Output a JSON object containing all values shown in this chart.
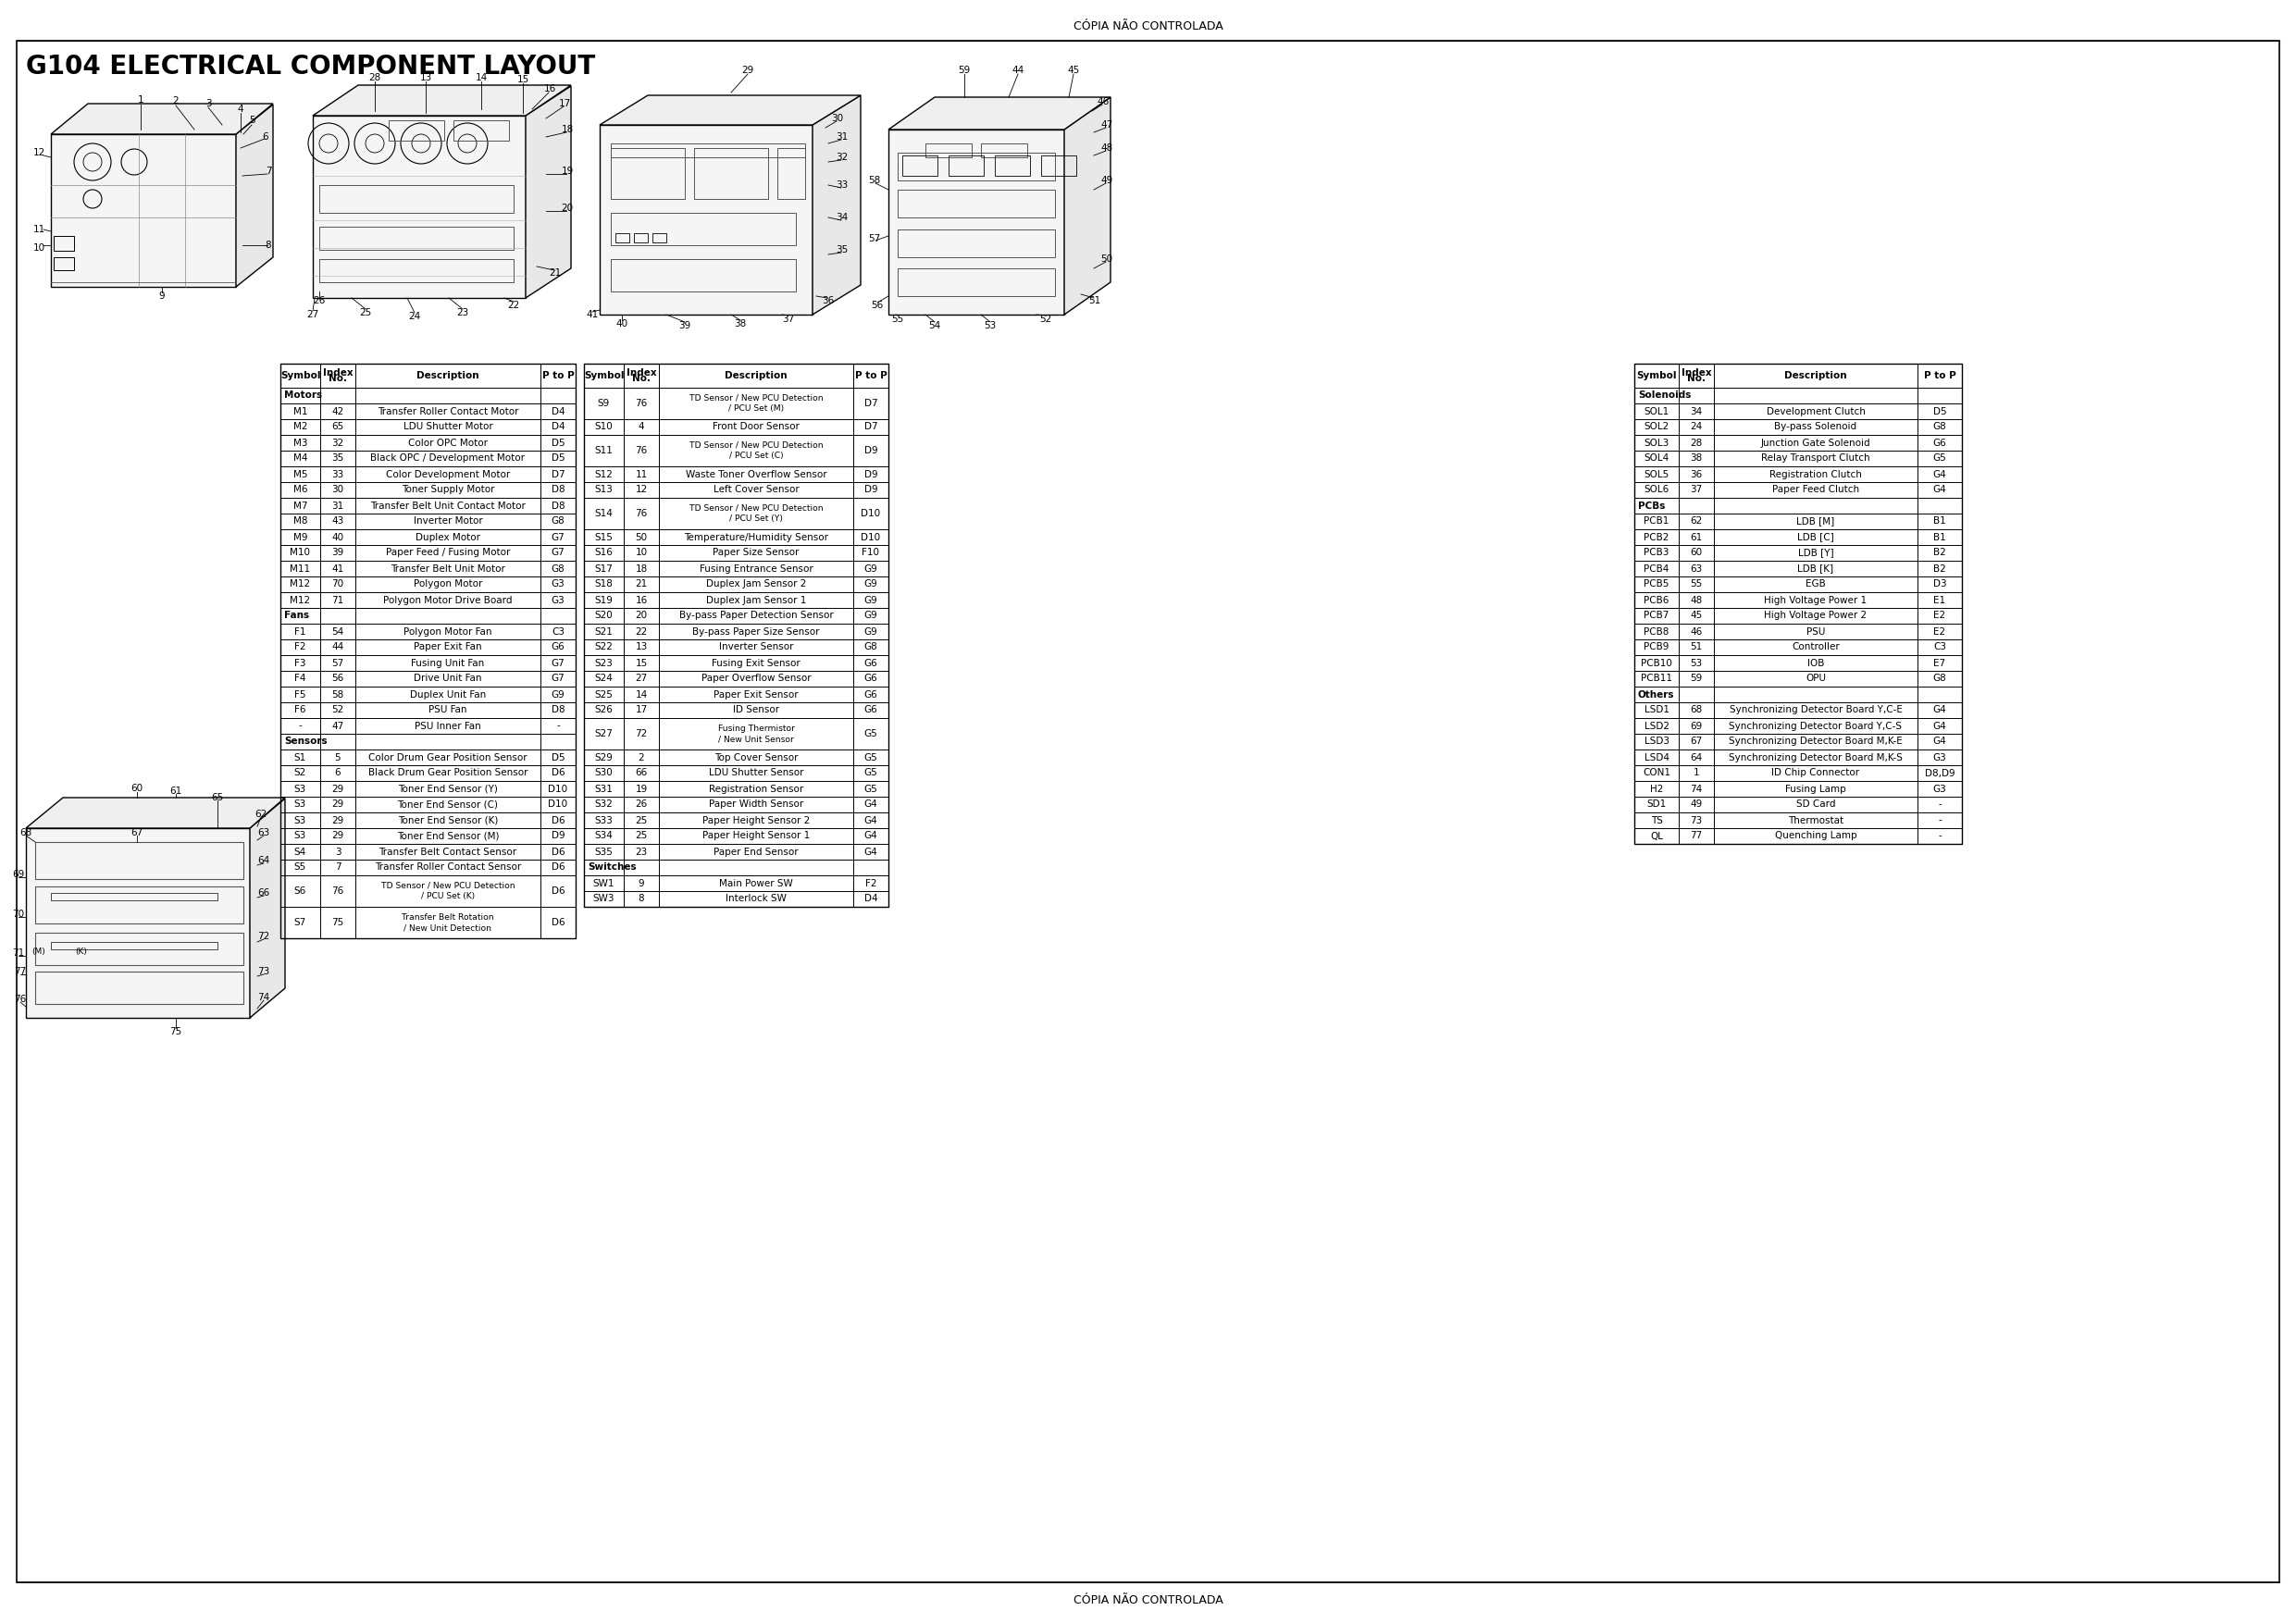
{
  "title": "G104 ELECTRICAL COMPONENT LAYOUT",
  "watermark": "CÓPIA NÃO CONTROLADA",
  "table1": {
    "sections": [
      {
        "name": "Motors",
        "rows": [
          [
            "M1",
            "42",
            "Transfer Roller Contact Motor",
            "D4"
          ],
          [
            "M2",
            "65",
            "LDU Shutter Motor",
            "D4"
          ],
          [
            "M3",
            "32",
            "Color OPC Motor",
            "D5"
          ],
          [
            "M4",
            "35",
            "Black OPC / Development Motor",
            "D5"
          ],
          [
            "M5",
            "33",
            "Color Development Motor",
            "D7"
          ],
          [
            "M6",
            "30",
            "Toner Supply Motor",
            "D8"
          ],
          [
            "M7",
            "31",
            "Transfer Belt Unit Contact Motor",
            "D8"
          ],
          [
            "M8",
            "43",
            "Inverter Motor",
            "G8"
          ],
          [
            "M9",
            "40",
            "Duplex Motor",
            "G7"
          ],
          [
            "M10",
            "39",
            "Paper Feed / Fusing Motor",
            "G7"
          ],
          [
            "M11",
            "41",
            "Transfer Belt Unit Motor",
            "G8"
          ],
          [
            "M12",
            "70",
            "Polygon Motor",
            "G3"
          ],
          [
            "M12",
            "71",
            "Polygon Motor Drive Board",
            "G3"
          ]
        ]
      },
      {
        "name": "Fans",
        "rows": [
          [
            "F1",
            "54",
            "Polygon Motor Fan",
            "C3"
          ],
          [
            "F2",
            "44",
            "Paper Exit Fan",
            "G6"
          ],
          [
            "F3",
            "57",
            "Fusing Unit Fan",
            "G7"
          ],
          [
            "F4",
            "56",
            "Drive Unit Fan",
            "G7"
          ],
          [
            "F5",
            "58",
            "Duplex Unit Fan",
            "G9"
          ],
          [
            "F6",
            "52",
            "PSU Fan",
            "D8"
          ],
          [
            "-",
            "47",
            "PSU Inner Fan",
            "-"
          ]
        ]
      },
      {
        "name": "Sensors",
        "rows": [
          [
            "S1",
            "5",
            "Color Drum Gear Position Sensor",
            "D5"
          ],
          [
            "S2",
            "6",
            "Black Drum Gear Position Sensor",
            "D6"
          ],
          [
            "S3",
            "29",
            "Toner End Sensor (Y)",
            "D10"
          ],
          [
            "S3",
            "29",
            "Toner End Sensor (C)",
            "D10"
          ],
          [
            "S3",
            "29",
            "Toner End Sensor (K)",
            "D6"
          ],
          [
            "S3",
            "29",
            "Toner End Sensor (M)",
            "D9"
          ],
          [
            "S4",
            "3",
            "Transfer Belt Contact Sensor",
            "D6"
          ],
          [
            "S5",
            "7",
            "Transfer Roller Contact Sensor",
            "D6"
          ],
          [
            "S6",
            "76",
            "TD Sensor / New PCU Detection\n/ PCU Set (K)",
            "D6"
          ],
          [
            "S7",
            "75",
            "Transfer Belt Rotation\n/ New Unit Detection",
            "D6"
          ]
        ]
      }
    ]
  },
  "table2": {
    "sections": [
      {
        "name": "",
        "rows": [
          [
            "S9",
            "76",
            "TD Sensor / New PCU Detection\n/ PCU Set (M)",
            "D7"
          ],
          [
            "S10",
            "4",
            "Front Door Sensor",
            "D7"
          ],
          [
            "S11",
            "76",
            "TD Sensor / New PCU Detection\n/ PCU Set (C)",
            "D9"
          ],
          [
            "S12",
            "11",
            "Waste Toner Overflow Sensor",
            "D9"
          ],
          [
            "S13",
            "12",
            "Left Cover Sensor",
            "D9"
          ],
          [
            "S14",
            "76",
            "TD Sensor / New PCU Detection\n/ PCU Set (Y)",
            "D10"
          ],
          [
            "S15",
            "50",
            "Temperature/Humidity Sensor",
            "D10"
          ],
          [
            "S16",
            "10",
            "Paper Size Sensor",
            "F10"
          ],
          [
            "S17",
            "18",
            "Fusing Entrance Sensor",
            "G9"
          ],
          [
            "S18",
            "21",
            "Duplex Jam Sensor 2",
            "G9"
          ],
          [
            "S19",
            "16",
            "Duplex Jam Sensor 1",
            "G9"
          ],
          [
            "S20",
            "20",
            "By-pass Paper Detection Sensor",
            "G9"
          ],
          [
            "S21",
            "22",
            "By-pass Paper Size Sensor",
            "G9"
          ],
          [
            "S22",
            "13",
            "Inverter Sensor",
            "G8"
          ],
          [
            "S23",
            "15",
            "Fusing Exit Sensor",
            "G6"
          ],
          [
            "S24",
            "27",
            "Paper Overflow Sensor",
            "G6"
          ],
          [
            "S25",
            "14",
            "Paper Exit Sensor",
            "G6"
          ],
          [
            "S26",
            "17",
            "ID Sensor",
            "G6"
          ],
          [
            "S27",
            "72",
            "Fusing Thermistor\n/ New Unit Sensor",
            "G5"
          ],
          [
            "S29",
            "2",
            "Top Cover Sensor",
            "G5"
          ],
          [
            "S30",
            "66",
            "LDU Shutter Sensor",
            "G5"
          ],
          [
            "S31",
            "19",
            "Registration Sensor",
            "G5"
          ],
          [
            "S32",
            "26",
            "Paper Width Sensor",
            "G4"
          ],
          [
            "S33",
            "25",
            "Paper Height Sensor 2",
            "G4"
          ],
          [
            "S34",
            "25",
            "Paper Height Sensor 1",
            "G4"
          ],
          [
            "S35",
            "23",
            "Paper End Sensor",
            "G4"
          ]
        ]
      },
      {
        "name": "Switches",
        "rows": [
          [
            "SW1",
            "9",
            "Main Power SW",
            "F2"
          ],
          [
            "SW3",
            "8",
            "Interlock SW",
            "D4"
          ]
        ]
      }
    ]
  },
  "table3": {
    "sections": [
      {
        "name": "Solenoids",
        "rows": [
          [
            "SOL1",
            "34",
            "Development Clutch",
            "D5"
          ],
          [
            "SOL2",
            "24",
            "By-pass Solenoid",
            "G8"
          ],
          [
            "SOL3",
            "28",
            "Junction Gate Solenoid",
            "G6"
          ],
          [
            "SOL4",
            "38",
            "Relay Transport Clutch",
            "G5"
          ],
          [
            "SOL5",
            "36",
            "Registration Clutch",
            "G4"
          ],
          [
            "SOL6",
            "37",
            "Paper Feed Clutch",
            "G4"
          ]
        ]
      },
      {
        "name": "PCBs",
        "rows": [
          [
            "PCB1",
            "62",
            "LDB [M]",
            "B1"
          ],
          [
            "PCB2",
            "61",
            "LDB [C]",
            "B1"
          ],
          [
            "PCB3",
            "60",
            "LDB [Y]",
            "B2"
          ],
          [
            "PCB4",
            "63",
            "LDB [K]",
            "B2"
          ],
          [
            "PCB5",
            "55",
            "EGB",
            "D3"
          ],
          [
            "PCB6",
            "48",
            "High Voltage Power 1",
            "E1"
          ],
          [
            "PCB7",
            "45",
            "High Voltage Power 2",
            "E2"
          ],
          [
            "PCB8",
            "46",
            "PSU",
            "E2"
          ],
          [
            "PCB9",
            "51",
            "Controller",
            "C3"
          ],
          [
            "PCB10",
            "53",
            "IOB",
            "E7"
          ],
          [
            "PCB11",
            "59",
            "OPU",
            "G8"
          ]
        ]
      },
      {
        "name": "Others",
        "rows": [
          [
            "LSD1",
            "68",
            "Synchronizing Detector Board Y,C-E",
            "G4"
          ],
          [
            "LSD2",
            "69",
            "Synchronizing Detector Board Y,C-S",
            "G4"
          ],
          [
            "LSD3",
            "67",
            "Synchronizing Detector Board M,K-E",
            "G4"
          ],
          [
            "LSD4",
            "64",
            "Synchronizing Detector Board M,K-S",
            "G3"
          ],
          [
            "CON1",
            "1",
            "ID Chip Connector",
            "D8,D9"
          ],
          [
            "H2",
            "74",
            "Fusing Lamp",
            "G3"
          ],
          [
            "SD1",
            "49",
            "SD Card",
            "-"
          ],
          [
            "TS",
            "73",
            "Thermostat",
            "-"
          ],
          [
            "QL",
            "77",
            "Quenching Lamp",
            "-"
          ]
        ]
      }
    ]
  }
}
